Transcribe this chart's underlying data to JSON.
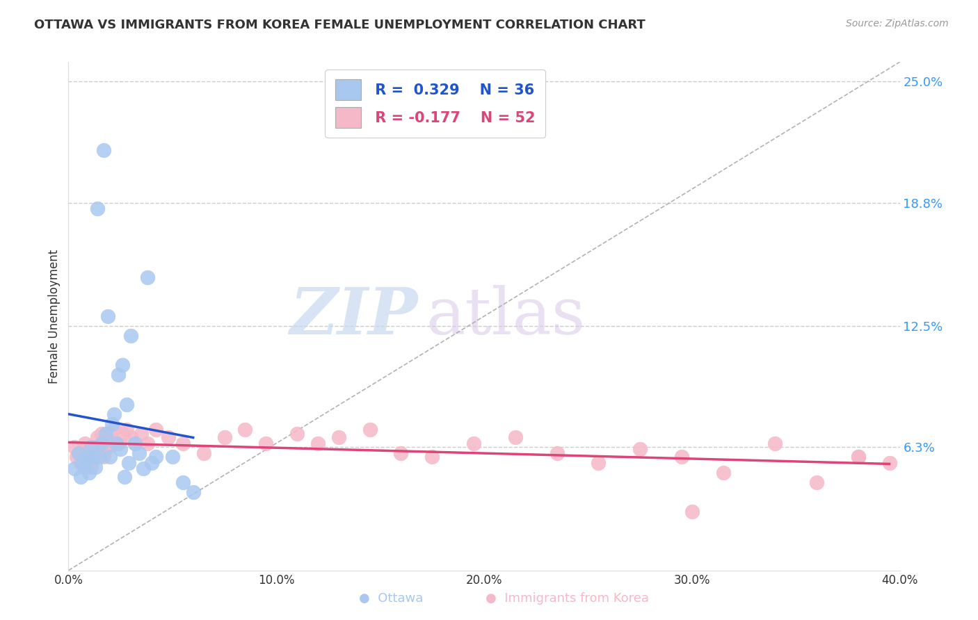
{
  "title": "OTTAWA VS IMMIGRANTS FROM KOREA FEMALE UNEMPLOYMENT CORRELATION CHART",
  "source": "Source: ZipAtlas.com",
  "ylabel": "Female Unemployment",
  "xlim": [
    0.0,
    0.4
  ],
  "ylim": [
    0.0,
    0.26
  ],
  "yticks": [
    0.063,
    0.125,
    0.188,
    0.25
  ],
  "ytick_labels": [
    "6.3%",
    "12.5%",
    "18.8%",
    "25.0%"
  ],
  "xtick_labels": [
    "0.0%",
    "10.0%",
    "20.0%",
    "30.0%",
    "40.0%"
  ],
  "xticks": [
    0.0,
    0.1,
    0.2,
    0.3,
    0.4
  ],
  "legend_r1": "R =  0.329",
  "legend_n1": "N = 36",
  "legend_r2": "R = -0.177",
  "legend_n2": "N = 52",
  "ottawa_color": "#a8c8f0",
  "korea_color": "#f5b8c8",
  "trendline_ottawa_color": "#2255cc",
  "trendline_korea_color": "#dd4477",
  "diagonal_color": "#aaaaaa",
  "watermark_zip": "ZIP",
  "watermark_atlas": "atlas",
  "background_color": "#ffffff",
  "ottawa_x": [
    0.003,
    0.005,
    0.006,
    0.007,
    0.008,
    0.009,
    0.01,
    0.011,
    0.012,
    0.013,
    0.014,
    0.015,
    0.016,
    0.017,
    0.018,
    0.019,
    0.02,
    0.021,
    0.022,
    0.023,
    0.024,
    0.025,
    0.026,
    0.027,
    0.028,
    0.029,
    0.03,
    0.032,
    0.034,
    0.036,
    0.038,
    0.04,
    0.042,
    0.05,
    0.055,
    0.06
  ],
  "ottawa_y": [
    0.052,
    0.06,
    0.048,
    0.055,
    0.053,
    0.058,
    0.05,
    0.063,
    0.058,
    0.053,
    0.185,
    0.058,
    0.065,
    0.215,
    0.07,
    0.13,
    0.058,
    0.075,
    0.08,
    0.065,
    0.1,
    0.062,
    0.105,
    0.048,
    0.085,
    0.055,
    0.12,
    0.065,
    0.06,
    0.052,
    0.15,
    0.055,
    0.058,
    0.058,
    0.045,
    0.04
  ],
  "korea_x": [
    0.003,
    0.004,
    0.005,
    0.006,
    0.007,
    0.008,
    0.009,
    0.01,
    0.011,
    0.012,
    0.013,
    0.014,
    0.015,
    0.016,
    0.017,
    0.018,
    0.019,
    0.02,
    0.022,
    0.024,
    0.026,
    0.028,
    0.03,
    0.032,
    0.035,
    0.038,
    0.042,
    0.048,
    0.055,
    0.065,
    0.075,
    0.085,
    0.095,
    0.11,
    0.12,
    0.13,
    0.145,
    0.16,
    0.175,
    0.195,
    0.215,
    0.235,
    0.255,
    0.275,
    0.295,
    0.315,
    0.34,
    0.36,
    0.38,
    0.395,
    0.3,
    0.38
  ],
  "korea_y": [
    0.063,
    0.058,
    0.06,
    0.055,
    0.062,
    0.065,
    0.058,
    0.06,
    0.053,
    0.058,
    0.063,
    0.068,
    0.06,
    0.07,
    0.058,
    0.062,
    0.07,
    0.065,
    0.072,
    0.065,
    0.07,
    0.072,
    0.068,
    0.065,
    0.07,
    0.065,
    0.072,
    0.068,
    0.065,
    0.06,
    0.068,
    0.072,
    0.065,
    0.07,
    0.065,
    0.068,
    0.072,
    0.06,
    0.058,
    0.065,
    0.068,
    0.06,
    0.055,
    0.062,
    0.058,
    0.05,
    0.065,
    0.045,
    0.058,
    0.055,
    0.03,
    0.058
  ]
}
